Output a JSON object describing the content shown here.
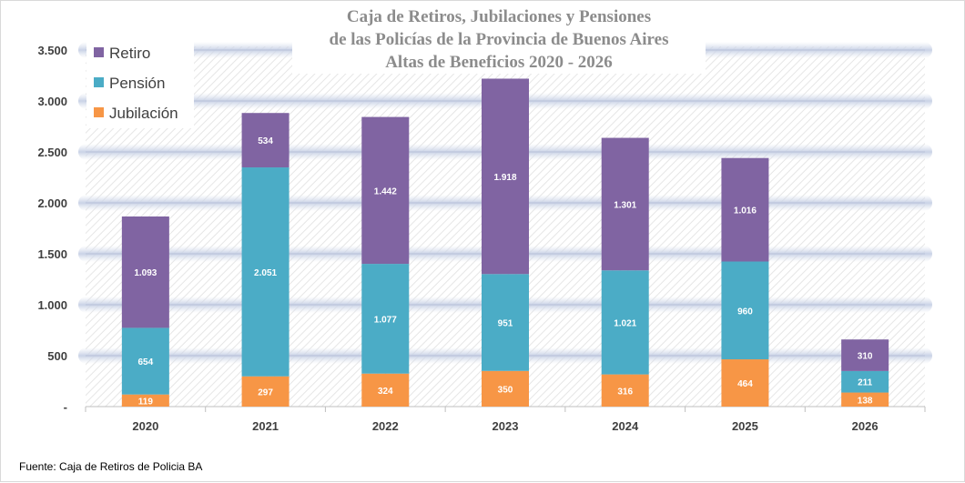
{
  "chart_data": {
    "type": "bar",
    "stacked": true,
    "title": [
      "Caja de Retiros, Jubilaciones y Pensiones",
      "de las Policías de la Provincia de Buenos Aires",
      "Altas de Beneficios 2020  - 2026"
    ],
    "categories": [
      "2020",
      "2021",
      "2022",
      "2023",
      "2024",
      "2025",
      "2026"
    ],
    "series": [
      {
        "name": "Jubilación",
        "color": "#f79646",
        "values": [
          119,
          297,
          324,
          350,
          316,
          464,
          138
        ],
        "labels": [
          "119",
          "297",
          "324",
          "350",
          "316",
          "464",
          "138"
        ]
      },
      {
        "name": "Pensión",
        "color": "#4bacc6",
        "values": [
          654,
          2051,
          1077,
          951,
          1021,
          960,
          211
        ],
        "labels": [
          "654",
          "2.051",
          "1.077",
          "951",
          "1.021",
          "960",
          "211"
        ]
      },
      {
        "name": "Retiro",
        "color": "#8064a2",
        "values": [
          1093,
          534,
          1442,
          1918,
          1301,
          1016,
          310
        ],
        "labels": [
          "1.093",
          "534",
          "1.442",
          "1.918",
          "1.301",
          "1.016",
          "310"
        ]
      }
    ],
    "ylim": [
      0,
      3500
    ],
    "yticks": [
      0,
      500,
      1000,
      1500,
      2000,
      2500,
      3000,
      3500
    ],
    "ytick_labels": [
      "-",
      "500",
      "1.000",
      "1.500",
      "2.000",
      "2.500",
      "3.000",
      "3.500"
    ],
    "legend_order": [
      "Retiro",
      "Pensión",
      "Jubilación"
    ],
    "legend_position": "top-left",
    "grid": true,
    "source": "Fuente: Caja de Retiros de Policia BA"
  }
}
